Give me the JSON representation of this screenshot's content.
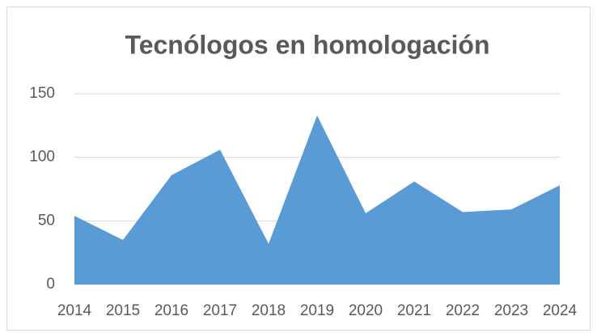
{
  "chart_data": {
    "type": "area",
    "title": "Tecnólogos en homologación",
    "categories": [
      "2014",
      "2015",
      "2016",
      "2017",
      "2018",
      "2019",
      "2020",
      "2021",
      "2022",
      "2023",
      "2024"
    ],
    "values": [
      54,
      35,
      86,
      106,
      32,
      133,
      56,
      81,
      57,
      59,
      78
    ],
    "color": "#5b9bd5",
    "ylim": [
      0,
      150
    ],
    "yticks": [
      0,
      50,
      100,
      150
    ],
    "grid": true
  }
}
